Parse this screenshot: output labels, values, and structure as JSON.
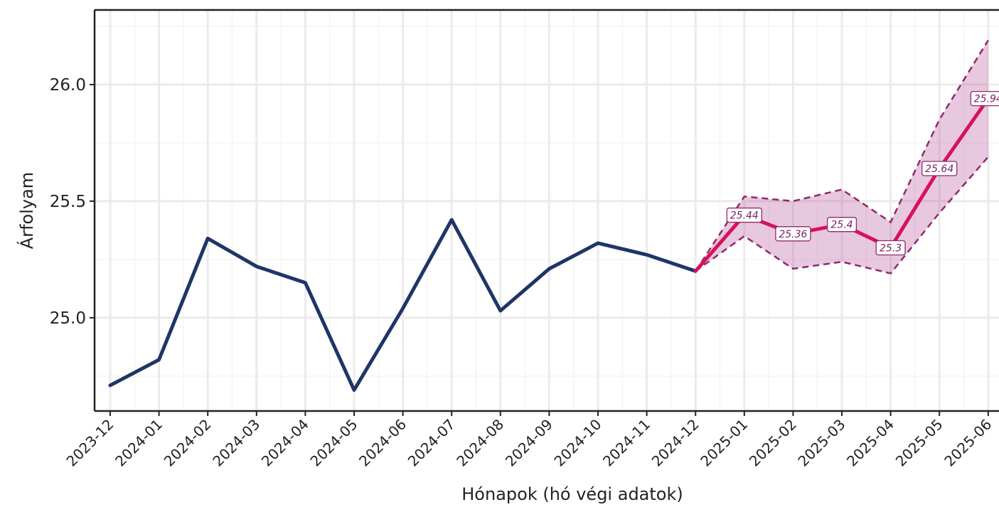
{
  "chart_data": {
    "type": "line",
    "title": "",
    "xlabel": "Hónapok (hó végi adatok)",
    "ylabel": "Árfolyam",
    "categories": [
      "2023-12",
      "2024-01",
      "2024-02",
      "2024-03",
      "2024-04",
      "2024-05",
      "2024-06",
      "2024-07",
      "2024-08",
      "2024-09",
      "2024-10",
      "2024-11",
      "2024-12",
      "2025-01",
      "2025-02",
      "2025-03",
      "2025-04",
      "2025-05",
      "2025-06"
    ],
    "y_ticks": [
      "25.0",
      "25.5",
      "26.0"
    ],
    "ylim": [
      24.6,
      26.32
    ],
    "grid": true,
    "series": [
      {
        "role": "historical",
        "color": "#1f3566",
        "x": [
          "2023-12",
          "2024-01",
          "2024-02",
          "2024-03",
          "2024-04",
          "2024-05",
          "2024-06",
          "2024-07",
          "2024-08",
          "2024-09",
          "2024-10",
          "2024-11",
          "2024-12"
        ],
        "values": [
          24.71,
          24.82,
          25.34,
          25.22,
          25.15,
          24.69,
          25.04,
          25.42,
          25.03,
          25.21,
          25.32,
          25.27,
          25.2
        ]
      },
      {
        "role": "forecast",
        "color": "#d8115a",
        "x": [
          "2024-12",
          "2025-01",
          "2025-02",
          "2025-03",
          "2025-04",
          "2025-05",
          "2025-06"
        ],
        "values": [
          25.2,
          25.44,
          25.36,
          25.4,
          25.3,
          25.64,
          25.94
        ],
        "labels": [
          "",
          "25.44",
          "25.36",
          "25.4",
          "25.3",
          "25.64",
          "25.94"
        ],
        "lower": [
          25.2,
          25.35,
          25.21,
          25.24,
          25.19,
          25.45,
          25.69
        ],
        "upper": [
          25.2,
          25.52,
          25.5,
          25.55,
          25.41,
          25.85,
          26.19
        ],
        "band_color": "#b5539b"
      }
    ]
  }
}
